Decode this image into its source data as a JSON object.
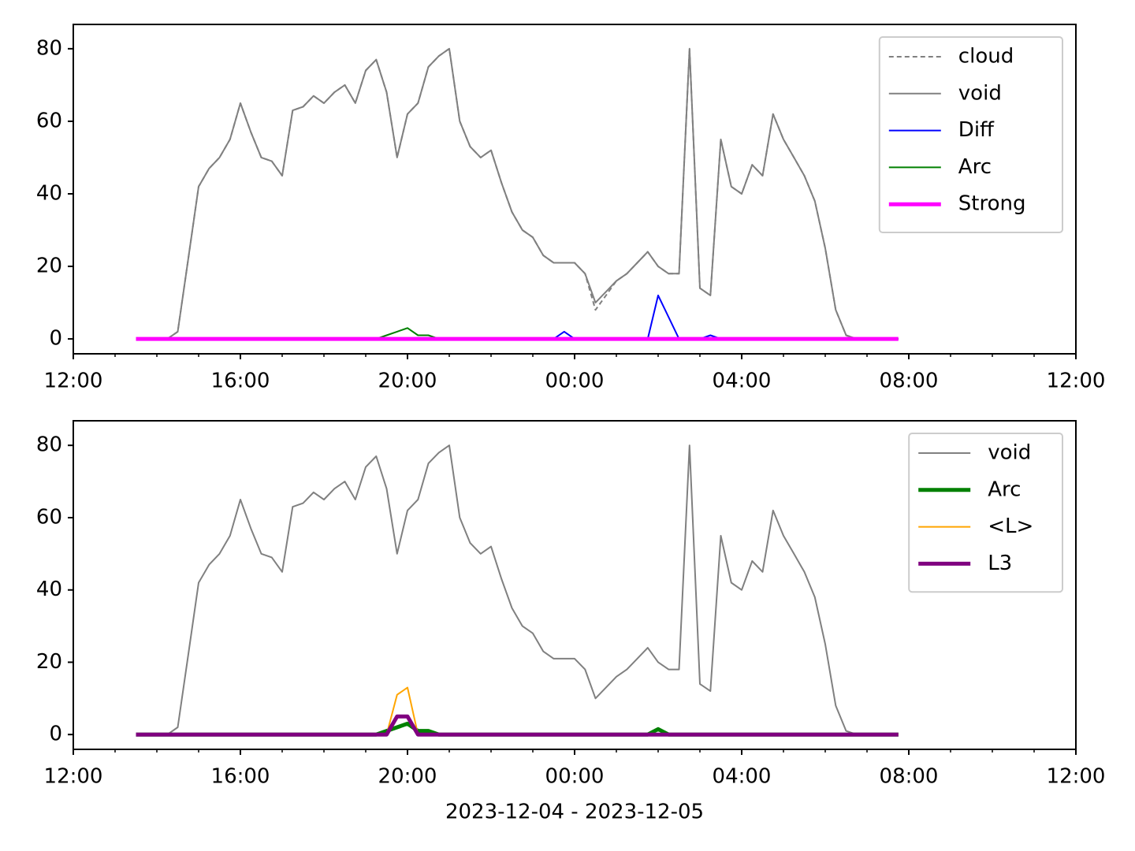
{
  "chart_data": [
    {
      "type": "line",
      "x": [
        1.5,
        1.75,
        2,
        2.25,
        2.5,
        2.75,
        3,
        3.25,
        3.5,
        3.75,
        4,
        4.25,
        4.5,
        4.75,
        5,
        5.25,
        5.5,
        5.75,
        6,
        6.25,
        6.5,
        6.75,
        7,
        7.25,
        7.5,
        7.75,
        8,
        8.25,
        8.5,
        8.75,
        9,
        9.25,
        9.5,
        9.75,
        10,
        10.25,
        10.5,
        10.75,
        11,
        11.25,
        11.5,
        11.75,
        12,
        12.25,
        12.5,
        12.75,
        13,
        13.25,
        13.5,
        13.75,
        14,
        14.25,
        14.5,
        14.75,
        15,
        15.25,
        15.5,
        15.75,
        16,
        16.25,
        16.5,
        16.75,
        17,
        17.25,
        17.5,
        17.75,
        18,
        18.25,
        18.5,
        18.75,
        19,
        19.25,
        19.5,
        19.75
      ],
      "xlim": [
        0,
        24
      ],
      "xticks": [
        {
          "value": 0,
          "label": "12:00"
        },
        {
          "value": 4,
          "label": "16:00"
        },
        {
          "value": 8,
          "label": "20:00"
        },
        {
          "value": 12,
          "label": "00:00"
        },
        {
          "value": 16,
          "label": "04:00"
        },
        {
          "value": 20,
          "label": "08:00"
        },
        {
          "value": 24,
          "label": "12:00"
        }
      ],
      "xminorticks": [
        1,
        2,
        3,
        5,
        6,
        7,
        9,
        10,
        11,
        13,
        14,
        15,
        17,
        18,
        19,
        21,
        22,
        23
      ],
      "ylim": [
        -4.1,
        86.7
      ],
      "yticks": [
        0,
        20,
        40,
        60,
        80
      ],
      "legend": "upper right",
      "series": [
        {
          "name": "cloud",
          "color": "#808080",
          "linestyle": "dashed",
          "linewidth": 2,
          "values": [
            0,
            0,
            0,
            0,
            2,
            22,
            42,
            47,
            50,
            55,
            65,
            57,
            50,
            49,
            45,
            63,
            64,
            67,
            65,
            68,
            70,
            65,
            74,
            77,
            68,
            50,
            62,
            65,
            75,
            78,
            80,
            60,
            53,
            50,
            52,
            43,
            35,
            30,
            28,
            23,
            21,
            21,
            21,
            18,
            8,
            12,
            16,
            18,
            21,
            24,
            20,
            18,
            18,
            80,
            14,
            12,
            55,
            42,
            40,
            48,
            45,
            62,
            55,
            50,
            45,
            38,
            25,
            8,
            1,
            0,
            0,
            0,
            0,
            0
          ]
        },
        {
          "name": "void",
          "color": "#808080",
          "linestyle": "solid",
          "linewidth": 2,
          "values": [
            0,
            0,
            0,
            0,
            2,
            22,
            42,
            47,
            50,
            55,
            65,
            57,
            50,
            49,
            45,
            63,
            64,
            67,
            65,
            68,
            70,
            65,
            74,
            77,
            68,
            50,
            62,
            65,
            75,
            78,
            80,
            60,
            53,
            50,
            52,
            43,
            35,
            30,
            28,
            23,
            21,
            21,
            21,
            18,
            10,
            13,
            16,
            18,
            21,
            24,
            20,
            18,
            18,
            80,
            14,
            12,
            55,
            42,
            40,
            48,
            45,
            62,
            55,
            50,
            45,
            38,
            25,
            8,
            1,
            0,
            0,
            0,
            0,
            0
          ]
        },
        {
          "name": "Diff",
          "color": "#0000ff",
          "linestyle": "solid",
          "linewidth": 2,
          "values": [
            0,
            0,
            0,
            0,
            0,
            0,
            0,
            0,
            0,
            0,
            0,
            0,
            0,
            0,
            0,
            0,
            0,
            0,
            0,
            0,
            0,
            0,
            0,
            0,
            0,
            0,
            0,
            0,
            0,
            0,
            0,
            0,
            0,
            0,
            0,
            0,
            0,
            0,
            0,
            0,
            0,
            2,
            0,
            0,
            0,
            0,
            0,
            0,
            0,
            0,
            12,
            6,
            0,
            0,
            0,
            1,
            0,
            0,
            0,
            0,
            0,
            0,
            0,
            0,
            0,
            0,
            0,
            0,
            0,
            0,
            0,
            0,
            0,
            0
          ]
        },
        {
          "name": "Arc",
          "color": "#008000",
          "linestyle": "solid",
          "linewidth": 2,
          "values": [
            0,
            0,
            0,
            0,
            0,
            0,
            0,
            0,
            0,
            0,
            0,
            0,
            0,
            0,
            0,
            0,
            0,
            0,
            0,
            0,
            0,
            0,
            0,
            0,
            1,
            2,
            3,
            1,
            1,
            0,
            0,
            0,
            0,
            0,
            0,
            0,
            0,
            0,
            0,
            0,
            0,
            0,
            0,
            0,
            0,
            0,
            0,
            0,
            0,
            0,
            0,
            0,
            0,
            0,
            0,
            0,
            0,
            0,
            0,
            0,
            0,
            0,
            0,
            0,
            0,
            0,
            0,
            0,
            0,
            0,
            0,
            0,
            0,
            0
          ]
        },
        {
          "name": "Strong",
          "color": "#ff00ff",
          "linestyle": "solid",
          "linewidth": 5,
          "values": [
            0,
            0,
            0,
            0,
            0,
            0,
            0,
            0,
            0,
            0,
            0,
            0,
            0,
            0,
            0,
            0,
            0,
            0,
            0,
            0,
            0,
            0,
            0,
            0,
            0,
            0,
            0,
            0,
            0,
            0,
            0,
            0,
            0,
            0,
            0,
            0,
            0,
            0,
            0,
            0,
            0,
            0,
            0,
            0,
            0,
            0,
            0,
            0,
            0,
            0,
            0,
            0,
            0,
            0,
            0,
            0,
            0,
            0,
            0,
            0,
            0,
            0,
            0,
            0,
            0,
            0,
            0,
            0,
            0,
            0,
            0,
            0,
            0,
            0
          ]
        }
      ]
    },
    {
      "type": "line",
      "x": [
        1.5,
        1.75,
        2,
        2.25,
        2.5,
        2.75,
        3,
        3.25,
        3.5,
        3.75,
        4,
        4.25,
        4.5,
        4.75,
        5,
        5.25,
        5.5,
        5.75,
        6,
        6.25,
        6.5,
        6.75,
        7,
        7.25,
        7.5,
        7.75,
        8,
        8.25,
        8.5,
        8.75,
        9,
        9.25,
        9.5,
        9.75,
        10,
        10.25,
        10.5,
        10.75,
        11,
        11.25,
        11.5,
        11.75,
        12,
        12.25,
        12.5,
        12.75,
        13,
        13.25,
        13.5,
        13.75,
        14,
        14.25,
        14.5,
        14.75,
        15,
        15.25,
        15.5,
        15.75,
        16,
        16.25,
        16.5,
        16.75,
        17,
        17.25,
        17.5,
        17.75,
        18,
        18.25,
        18.5,
        18.75,
        19,
        19.25,
        19.5,
        19.75
      ],
      "xlim": [
        0,
        24
      ],
      "xticks": [
        {
          "value": 0,
          "label": "12:00"
        },
        {
          "value": 4,
          "label": "16:00"
        },
        {
          "value": 8,
          "label": "20:00"
        },
        {
          "value": 12,
          "label": "00:00"
        },
        {
          "value": 16,
          "label": "04:00"
        },
        {
          "value": 20,
          "label": "08:00"
        },
        {
          "value": 24,
          "label": "12:00"
        }
      ],
      "xminorticks": [
        1,
        2,
        3,
        5,
        6,
        7,
        9,
        10,
        11,
        13,
        14,
        15,
        17,
        18,
        19,
        21,
        22,
        23
      ],
      "ylim": [
        -4.1,
        86.8
      ],
      "yticks": [
        0,
        20,
        40,
        60,
        80
      ],
      "xlabel": "2023-12-04 - 2023-12-05",
      "legend": "upper right",
      "series": [
        {
          "name": "void",
          "color": "#808080",
          "linestyle": "solid",
          "linewidth": 2,
          "values": [
            0,
            0,
            0,
            0,
            2,
            22,
            42,
            47,
            50,
            55,
            65,
            57,
            50,
            49,
            45,
            63,
            64,
            67,
            65,
            68,
            70,
            65,
            74,
            77,
            68,
            50,
            62,
            65,
            75,
            78,
            80,
            60,
            53,
            50,
            52,
            43,
            35,
            30,
            28,
            23,
            21,
            21,
            21,
            18,
            10,
            13,
            16,
            18,
            21,
            24,
            20,
            18,
            18,
            80,
            14,
            12,
            55,
            42,
            40,
            48,
            45,
            62,
            55,
            50,
            45,
            38,
            25,
            8,
            1,
            0,
            0,
            0,
            0,
            0
          ]
        },
        {
          "name": "Arc",
          "color": "#008000",
          "linestyle": "solid",
          "linewidth": 5,
          "values": [
            0,
            0,
            0,
            0,
            0,
            0,
            0,
            0,
            0,
            0,
            0,
            0,
            0,
            0,
            0,
            0,
            0,
            0,
            0,
            0,
            0,
            0,
            0,
            0,
            1,
            2,
            3,
            1,
            1,
            0,
            0,
            0,
            0,
            0,
            0,
            0,
            0,
            0,
            0,
            0,
            0,
            0,
            0,
            0,
            0,
            0,
            0,
            0,
            0,
            0,
            1.5,
            0,
            0,
            0,
            0,
            0,
            0,
            0,
            0,
            0,
            0,
            0,
            0,
            0,
            0,
            0,
            0,
            0,
            0,
            0,
            0,
            0,
            0,
            0
          ]
        },
        {
          "name": "<L>",
          "color": "#ffa500",
          "linestyle": "solid",
          "linewidth": 2,
          "values": [
            0,
            0,
            0,
            0,
            0,
            0,
            0,
            0,
            0,
            0,
            0,
            0,
            0,
            0,
            0,
            0,
            0,
            0,
            0,
            0,
            0,
            0,
            0,
            0,
            0,
            11,
            13,
            0,
            0,
            0,
            0,
            0,
            0,
            0,
            0,
            0,
            0,
            0,
            0,
            0,
            0,
            0,
            0,
            0,
            0,
            0,
            0,
            0,
            0,
            0,
            0,
            0,
            0,
            0,
            0,
            0,
            0,
            0,
            0,
            0,
            0,
            0,
            0,
            0,
            0,
            0,
            0,
            0,
            0,
            0,
            0,
            0,
            0,
            0
          ]
        },
        {
          "name": "L3",
          "color": "#800080",
          "linestyle": "solid",
          "linewidth": 5,
          "values": [
            0,
            0,
            0,
            0,
            0,
            0,
            0,
            0,
            0,
            0,
            0,
            0,
            0,
            0,
            0,
            0,
            0,
            0,
            0,
            0,
            0,
            0,
            0,
            0,
            0,
            5,
            5,
            0,
            0,
            0,
            0,
            0,
            0,
            0,
            0,
            0,
            0,
            0,
            0,
            0,
            0,
            0,
            0,
            0,
            0,
            0,
            0,
            0,
            0,
            0,
            0,
            0,
            0,
            0,
            0,
            0,
            0,
            0,
            0,
            0,
            0,
            0,
            0,
            0,
            0,
            0,
            0,
            0,
            0,
            0,
            0,
            0,
            0,
            0
          ]
        }
      ]
    }
  ]
}
